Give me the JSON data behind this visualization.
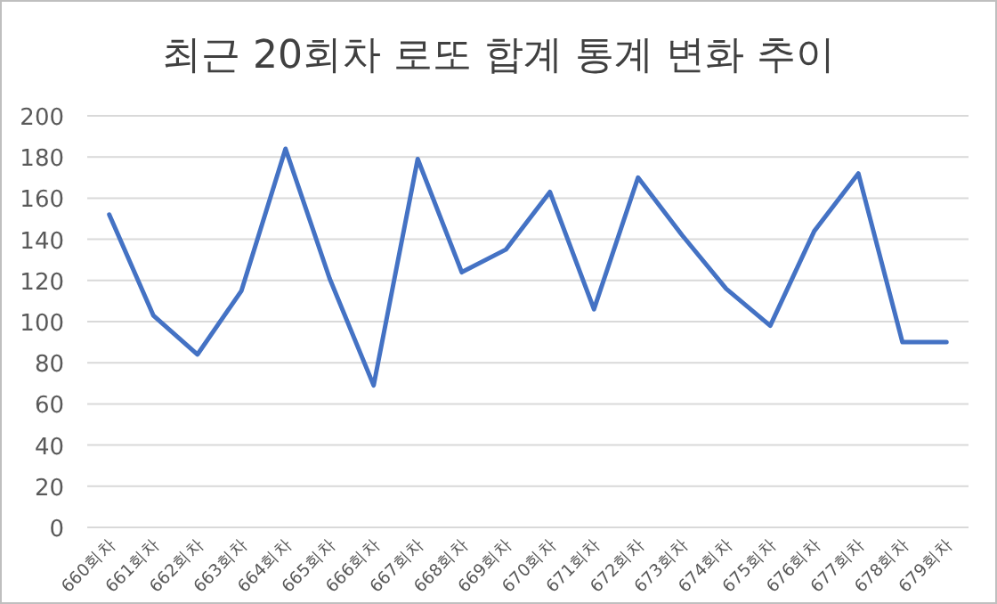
{
  "chart_data": {
    "type": "line",
    "title": "최근 20회차 로또 합계 통계 변화 추이",
    "categories": [
      "660회차",
      "661회차",
      "662회차",
      "663회차",
      "664회차",
      "665회차",
      "666회차",
      "667회차",
      "668회차",
      "669회차",
      "670회차",
      "671회차",
      "672회차",
      "673회차",
      "674회차",
      "675회차",
      "676회차",
      "677회차",
      "678회차",
      "679회차"
    ],
    "series": [
      {
        "color": "#4472c4",
        "values": [
          152,
          103,
          84,
          115,
          184,
          121,
          69,
          179,
          124,
          135,
          163,
          106,
          170,
          142,
          116,
          98,
          144,
          172,
          90,
          90
        ]
      }
    ],
    "ylim": [
      0,
      200
    ],
    "yticks": [
      0,
      20,
      40,
      60,
      80,
      100,
      120,
      140,
      160,
      180,
      200
    ],
    "grid": "y",
    "marker": "none",
    "line_style": "solid"
  }
}
